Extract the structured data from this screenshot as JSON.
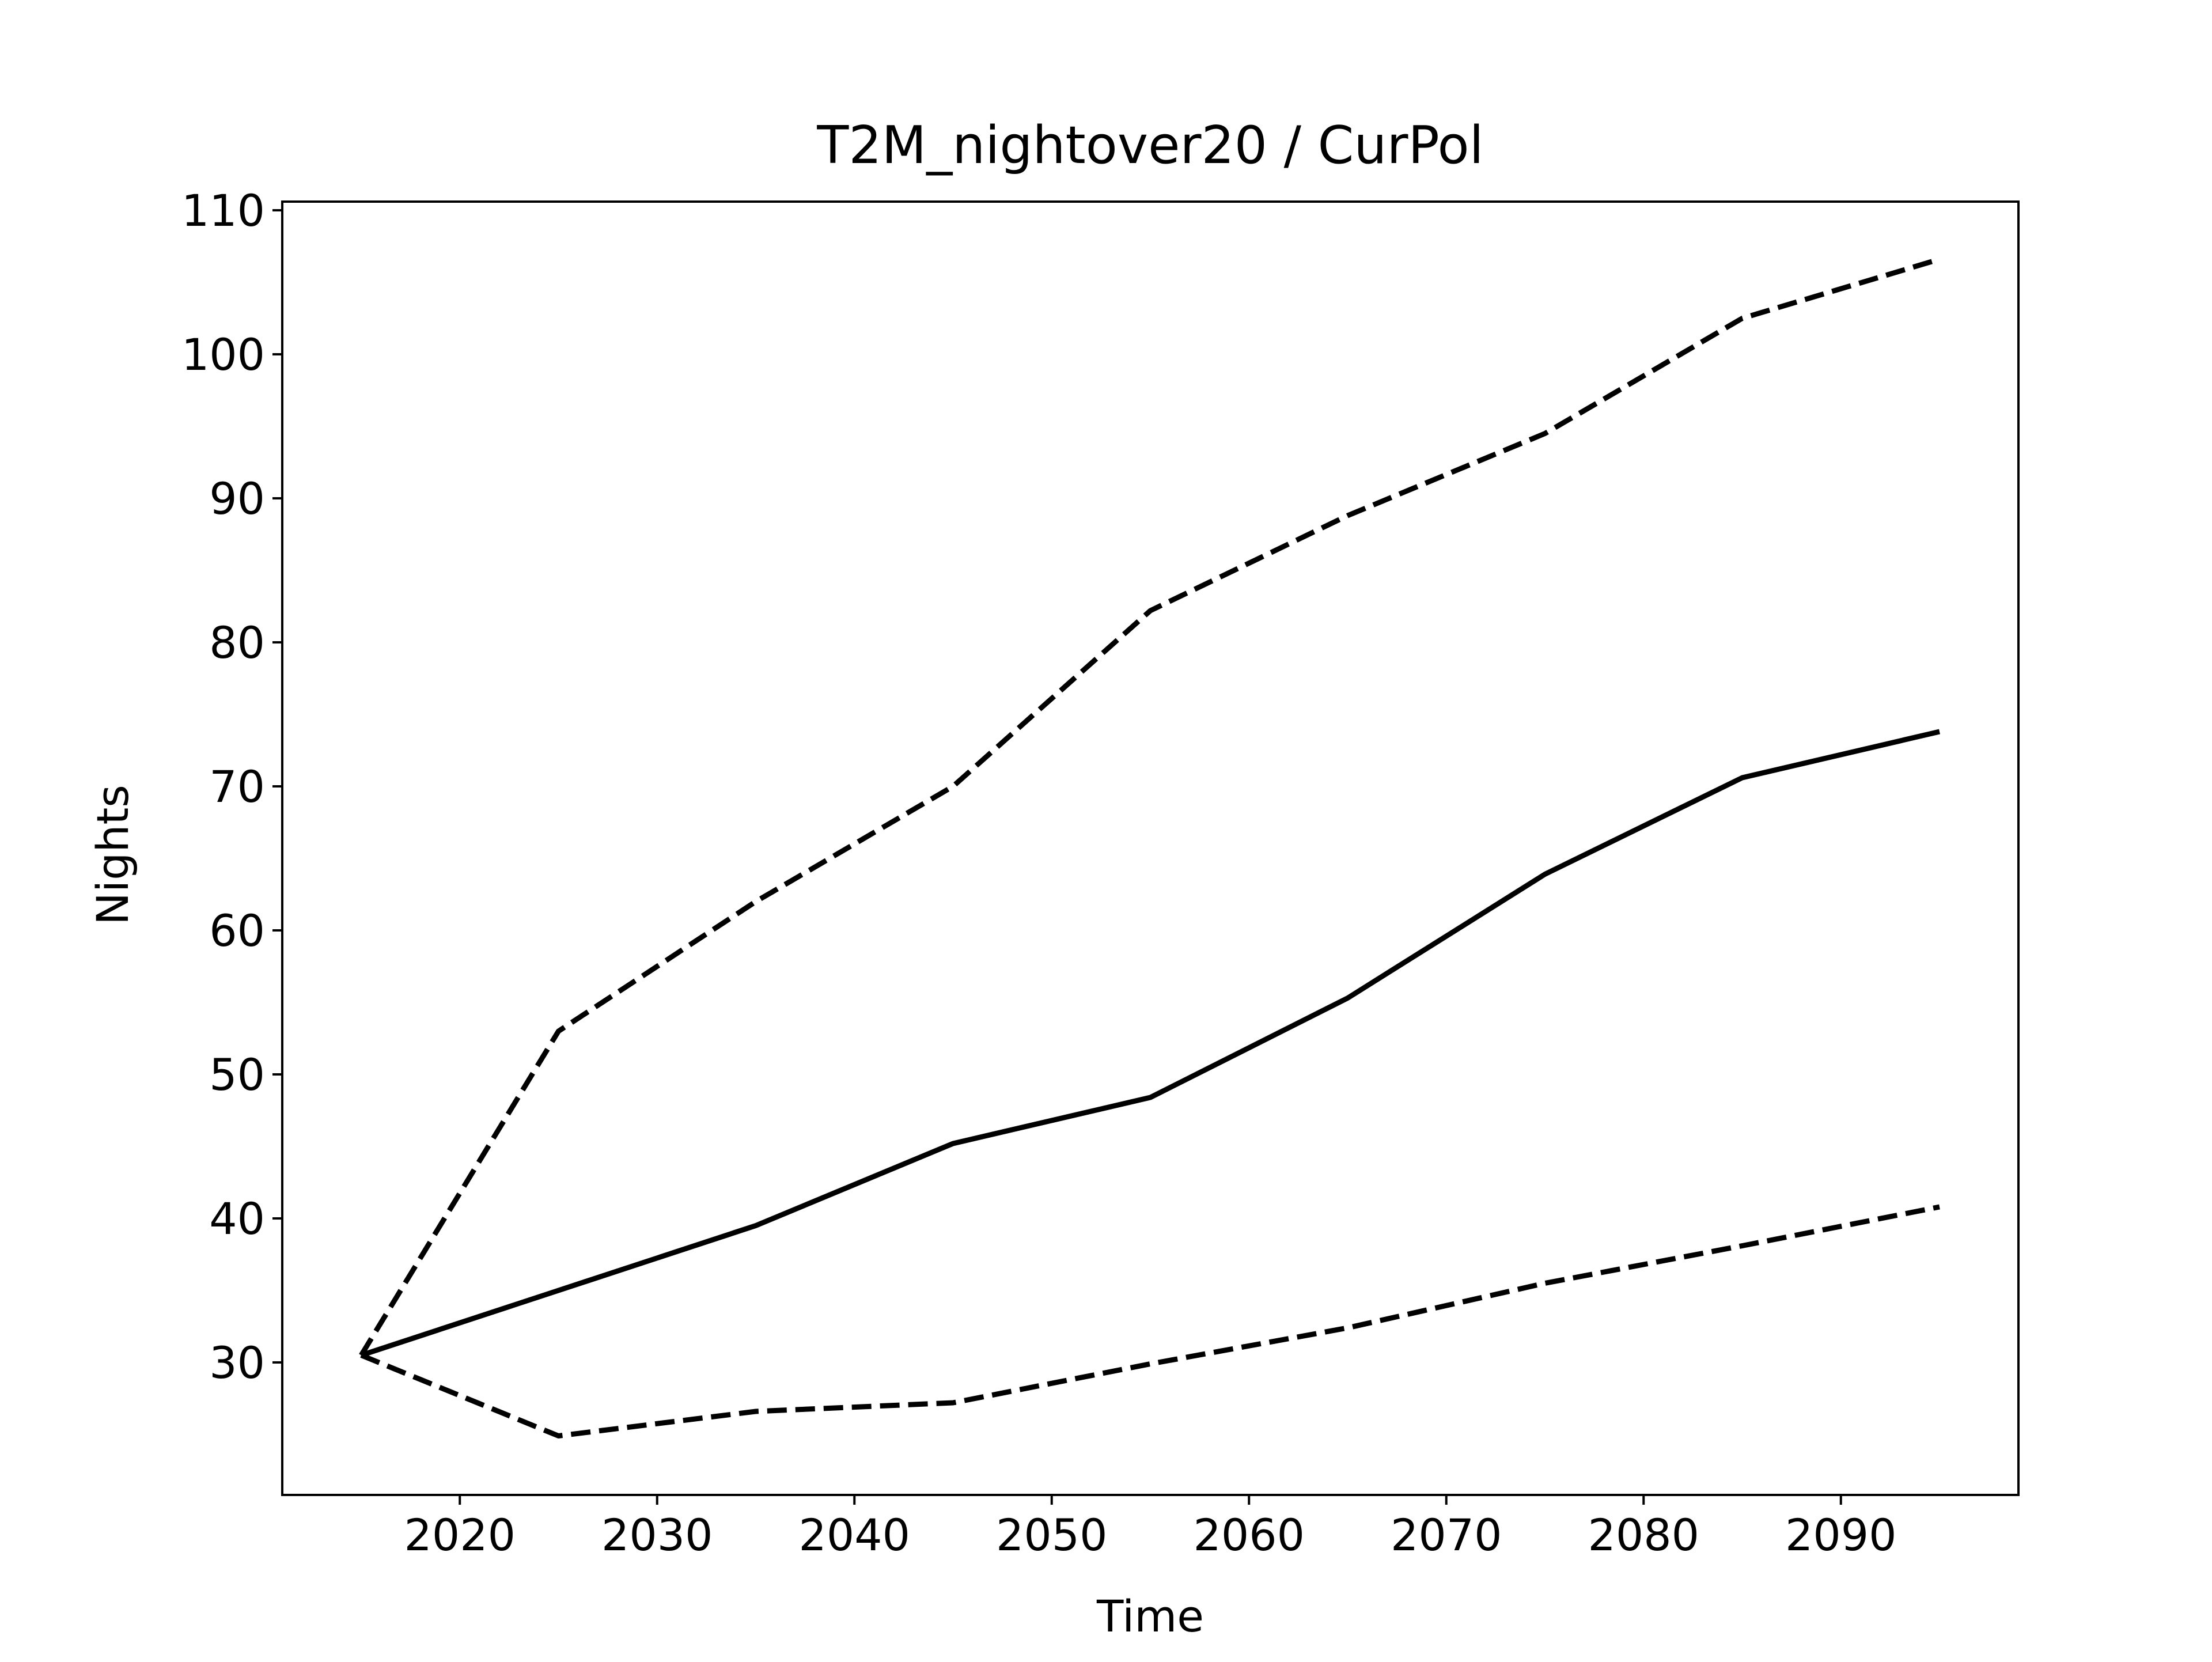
{
  "chart_data": {
    "type": "line",
    "title": "T2M_nightover20 / CurPol",
    "xlabel": "Time",
    "ylabel": "Nights",
    "x": [
      2015,
      2025,
      2035,
      2045,
      2055,
      2065,
      2075,
      2085,
      2095
    ],
    "series": [
      {
        "style": "dashed",
        "values": [
          30.5,
          53.0,
          62.0,
          70.0,
          82.2,
          88.8,
          94.5,
          102.5,
          106.6
        ]
      },
      {
        "style": "solid",
        "values": [
          30.5,
          35.0,
          39.5,
          45.2,
          48.4,
          55.3,
          63.9,
          70.6,
          73.8
        ]
      },
      {
        "style": "dashed",
        "values": [
          30.5,
          24.9,
          26.6,
          27.2,
          29.9,
          32.4,
          35.5,
          38.1,
          40.8
        ]
      }
    ],
    "xlim": [
      2011,
      2099
    ],
    "ylim": [
      20.8,
      110.6
    ],
    "xticks": [
      2020,
      2030,
      2040,
      2050,
      2060,
      2070,
      2080,
      2090
    ],
    "yticks": [
      30,
      40,
      50,
      60,
      70,
      80,
      90,
      100,
      110
    ],
    "grid": false,
    "legend": "none",
    "colors": {
      "line": "#000000",
      "background": "#ffffff",
      "axes": "#000000"
    }
  }
}
